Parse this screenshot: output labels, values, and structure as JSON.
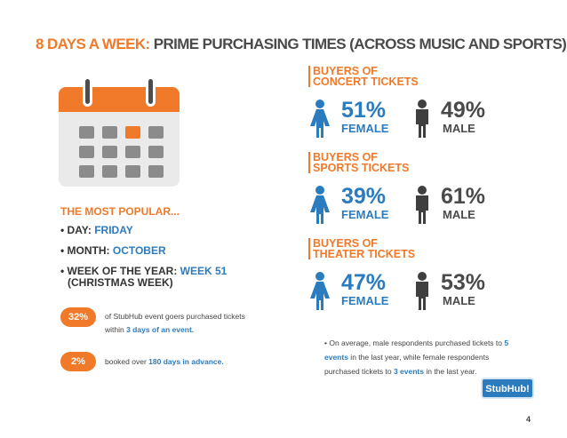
{
  "title": {
    "highlight": "8 DAYS A WEEK:",
    "rest": "PRIME PURCHASING TIMES (ACROSS MUSIC AND SPORTS)"
  },
  "popular": {
    "heading": "THE MOST POPULAR...",
    "day_label": "• DAY: ",
    "day_value": "FRIDAY",
    "month_label": "• MONTH: ",
    "month_value": "OCTOBER",
    "week_label": "• WEEK OF THE YEAR: ",
    "week_value": "WEEK 51",
    "week_note": "(CHRISTMAS WEEK)"
  },
  "stats": [
    {
      "badge": "32%",
      "text_before": "of StubHub event goers purchased tickets within ",
      "highlight": "3 days of an event."
    },
    {
      "badge": "2%",
      "text_before": "booked over ",
      "highlight": "180 days in advance."
    }
  ],
  "buyers": [
    {
      "title_line1": "BUYERS OF",
      "title_line2": "CONCERT TICKETS",
      "female_pct": "51%",
      "female_label": "FEMALE",
      "male_pct": "49%",
      "male_label": "MALE"
    },
    {
      "title_line1": "BUYERS OF",
      "title_line2": "SPORTS TICKETS",
      "female_pct": "39%",
      "female_label": "FEMALE",
      "male_pct": "61%",
      "male_label": "MALE"
    },
    {
      "title_line1": "BUYERS OF",
      "title_line2": "THEATER TICKETS",
      "female_pct": "47%",
      "female_label": "FEMALE",
      "male_pct": "53%",
      "male_label": "MALE"
    }
  ],
  "note": {
    "p1": "• On average, male respondents purchased tickets to ",
    "h1": "5 events",
    "p2": " in the last year, while female respondents purchased tickets to ",
    "h2": "3 events",
    "p3": " in the last year."
  },
  "logo": "StubHub!",
  "page_number": "4",
  "colors": {
    "accent": "#f07a2a",
    "blue": "#2b7bbf",
    "dark": "#4a4a4a"
  }
}
